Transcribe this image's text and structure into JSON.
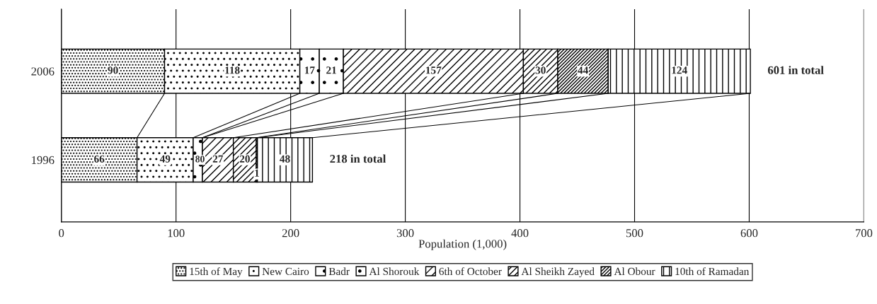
{
  "chart_data": {
    "type": "bar",
    "orientation": "horizontal",
    "stacked": true,
    "categories": [
      "2006",
      "1996"
    ],
    "series": [
      {
        "name": "15th of May",
        "color": "#000000",
        "values": [
          90,
          66
        ],
        "value_labels": [
          "90",
          "66"
        ]
      },
      {
        "name": "New Cairo",
        "color": "#000000",
        "values": [
          118,
          49
        ],
        "value_labels": [
          "118",
          "49"
        ]
      },
      {
        "name": "Badr",
        "color": "#000000",
        "values": [
          17,
          8
        ],
        "value_labels": [
          "17",
          "8"
        ]
      },
      {
        "name": "Al Shorouk",
        "color": "#000000",
        "values": [
          21,
          0
        ],
        "value_labels": [
          "21",
          "0"
        ]
      },
      {
        "name": "6th of October",
        "color": "#000000",
        "values": [
          157,
          27
        ],
        "value_labels": [
          "157",
          "27"
        ]
      },
      {
        "name": "Al Sheikh Zayed",
        "color": "#000000",
        "values": [
          30,
          20
        ],
        "value_labels": [
          "30",
          "20"
        ]
      },
      {
        "name": "Al Obour",
        "color": "#000000",
        "values": [
          44,
          1
        ],
        "value_labels": [
          "44",
          "1"
        ]
      },
      {
        "name": "10th of Ramadan",
        "color": "#000000",
        "values": [
          124,
          48
        ],
        "value_labels": [
          "124",
          "48"
        ]
      }
    ],
    "totals": [
      "601 in total",
      "218 in total"
    ],
    "xlabel": "Population (1,000)",
    "xlim": [
      0,
      700
    ],
    "xticks": [
      0,
      100,
      200,
      300,
      400,
      500,
      600,
      700
    ],
    "grid": "x",
    "legend": "bottom"
  }
}
